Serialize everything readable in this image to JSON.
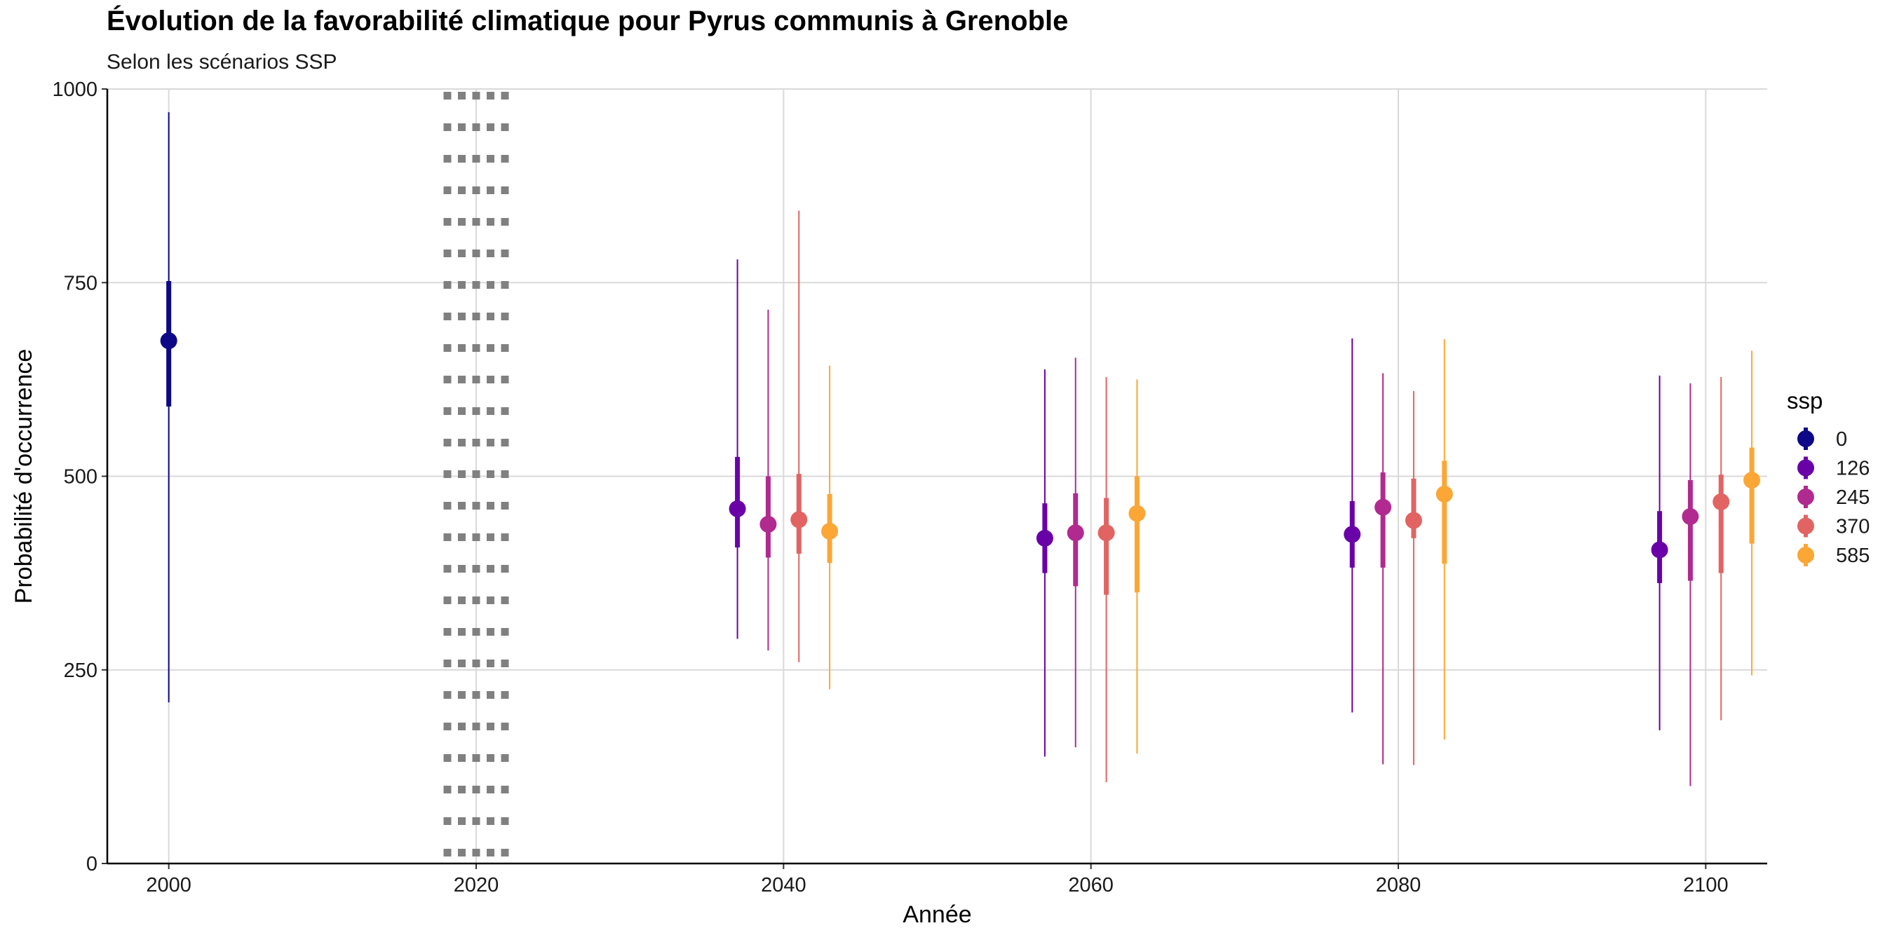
{
  "chart_data": {
    "type": "scatter",
    "title": "Évolution de la favorabilité climatique pour Pyrus communis à Grenoble",
    "subtitle": "Selon les scénarios SSP",
    "xlabel": "Année",
    "ylabel": "Probabilité d'occurrence",
    "xlim": [
      1996,
      2104
    ],
    "ylim": [
      0,
      1000
    ],
    "x_ticks": [
      "2000",
      "2020",
      "2040",
      "2060",
      "2080",
      "2100"
    ],
    "y_ticks": [
      "0",
      "250",
      "500",
      "750",
      "1000"
    ],
    "grid": true,
    "reference_line": {
      "x": 2020,
      "style": "dotted"
    },
    "legend": {
      "title": "ssp",
      "position": "right"
    },
    "series": [
      {
        "name": "0",
        "color": "#0d0887",
        "points": [
          {
            "x": 2000,
            "y": 675,
            "q_low": 590,
            "q_high": 752,
            "min": 208,
            "max": 970
          }
        ]
      },
      {
        "name": "126",
        "color": "#6a00a8",
        "points": [
          {
            "x": 2037,
            "y": 458,
            "q_low": 408,
            "q_high": 525,
            "min": 290,
            "max": 780
          },
          {
            "x": 2057,
            "y": 420,
            "q_low": 375,
            "q_high": 465,
            "min": 138,
            "max": 638
          },
          {
            "x": 2077,
            "y": 425,
            "q_low": 382,
            "q_high": 468,
            "min": 195,
            "max": 678
          },
          {
            "x": 2097,
            "y": 405,
            "q_low": 362,
            "q_high": 455,
            "min": 172,
            "max": 630
          }
        ]
      },
      {
        "name": "245",
        "color": "#b12a90",
        "points": [
          {
            "x": 2039,
            "y": 438,
            "q_low": 395,
            "q_high": 500,
            "min": 275,
            "max": 715
          },
          {
            "x": 2059,
            "y": 427,
            "q_low": 358,
            "q_high": 478,
            "min": 150,
            "max": 653
          },
          {
            "x": 2079,
            "y": 460,
            "q_low": 382,
            "q_high": 505,
            "min": 128,
            "max": 633
          },
          {
            "x": 2099,
            "y": 448,
            "q_low": 365,
            "q_high": 495,
            "min": 100,
            "max": 620
          }
        ]
      },
      {
        "name": "370",
        "color": "#e16462",
        "points": [
          {
            "x": 2041,
            "y": 444,
            "q_low": 400,
            "q_high": 503,
            "min": 260,
            "max": 843
          },
          {
            "x": 2061,
            "y": 427,
            "q_low": 347,
            "q_high": 472,
            "min": 105,
            "max": 628
          },
          {
            "x": 2081,
            "y": 443,
            "q_low": 420,
            "q_high": 497,
            "min": 127,
            "max": 610
          },
          {
            "x": 2101,
            "y": 467,
            "q_low": 375,
            "q_high": 502,
            "min": 185,
            "max": 628
          }
        ]
      },
      {
        "name": "585",
        "color": "#fca636",
        "points": [
          {
            "x": 2043,
            "y": 429,
            "q_low": 388,
            "q_high": 477,
            "min": 225,
            "max": 643
          },
          {
            "x": 2063,
            "y": 452,
            "q_low": 350,
            "q_high": 500,
            "min": 142,
            "max": 625
          },
          {
            "x": 2083,
            "y": 477,
            "q_low": 387,
            "q_high": 520,
            "min": 160,
            "max": 677
          },
          {
            "x": 2103,
            "y": 495,
            "q_low": 413,
            "q_high": 537,
            "min": 243,
            "max": 662
          }
        ]
      }
    ]
  }
}
